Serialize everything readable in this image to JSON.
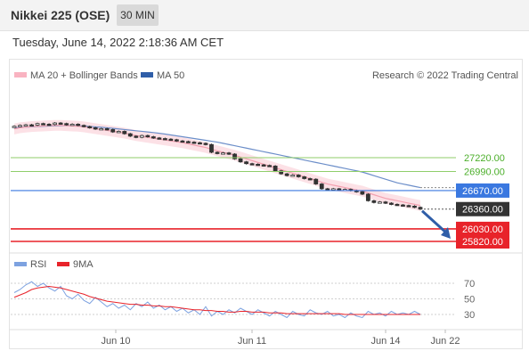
{
  "header": {
    "title": "Nikkei 225 (OSE)",
    "timeframe": "30 MIN"
  },
  "timestamp": "Tuesday, June 14, 2022 2:18:36 AM CET",
  "colors": {
    "candle_up": "#ffffff",
    "candle_down": "#333333",
    "band": "#f9c9d2",
    "ma20": "#f3a0b0",
    "ma50": "#6c8ec9",
    "resistance": "#8fce6a",
    "pivot": "#3a78e0",
    "support": "#e8232a",
    "rsi": "#7da2e0",
    "rsi_ma": "#e8232a"
  },
  "legend": {
    "ma20_label": "MA 20 + Bollinger Bands",
    "ma50_label": "MA 50",
    "credit": "Research © 2022 Trading Central"
  },
  "rsi_legend": {
    "rsi_label": "RSI",
    "ma_label": "9MA"
  },
  "levels": [
    {
      "value": "27220.00",
      "kind": "resistance"
    },
    {
      "value": "26990.00",
      "kind": "resistance"
    },
    {
      "value": "26670.00",
      "kind": "pivot"
    },
    {
      "value": "26360.00",
      "kind": "last"
    },
    {
      "value": "26030.00",
      "kind": "support"
    },
    {
      "value": "25820.00",
      "kind": "support"
    }
  ],
  "rsi_ticks": [
    "70",
    "50",
    "30"
  ],
  "x_ticks": [
    "Jun 10",
    "Jun 11",
    "Jun 14",
    "Jun 22"
  ],
  "chart_data": [
    {
      "type": "line",
      "title": "",
      "y_scale_ref": {
        "prices": [
          27220,
          25820
        ]
      },
      "close": [
        27745,
        27760,
        27770,
        27765,
        27790,
        27780,
        27775,
        27800,
        27790,
        27770,
        27780,
        27760,
        27740,
        27720,
        27700,
        27705,
        27690,
        27650,
        27660,
        27620,
        27580,
        27560,
        27590,
        27570,
        27550,
        27540,
        27530,
        27520,
        27500,
        27490,
        27480,
        27470,
        27460,
        27440,
        27310,
        27290,
        27300,
        27280,
        27200,
        27150,
        27120,
        27110,
        27100,
        27090,
        27080,
        27000,
        26950,
        26920,
        26930,
        26900,
        26870,
        26860,
        26780,
        26700,
        26690,
        26700,
        26680,
        26690,
        26670,
        26650,
        26610,
        26500,
        26470,
        26480,
        26460,
        26440,
        26430,
        26420,
        26410,
        26390,
        26360
      ],
      "ma20": [
        27700,
        27720,
        27730,
        27740,
        27745,
        27750,
        27755,
        27760,
        27760,
        27755,
        27750,
        27745,
        27735,
        27720,
        27705,
        27690,
        27675,
        27660,
        27645,
        27630,
        27610,
        27590,
        27575,
        27560,
        27545,
        27530,
        27515,
        27500,
        27485,
        27470,
        27450,
        27430,
        27410,
        27390,
        27360,
        27335,
        27310,
        27285,
        27260,
        27230,
        27200,
        27170,
        27140,
        27110,
        27080,
        27050,
        27020,
        26990,
        26960,
        26930,
        26900,
        26870,
        26840,
        26810,
        26780,
        26760,
        26740,
        26720,
        26700,
        26680,
        26660,
        26630,
        26600,
        26570,
        26540,
        26520,
        26500,
        26480,
        26460,
        26440,
        26420
      ],
      "ma50": [
        27720,
        27725,
        27730,
        27735,
        27740,
        27745,
        27750,
        27752,
        27754,
        27755,
        27754,
        27752,
        27748,
        27742,
        27735,
        27728,
        27720,
        27710,
        27700,
        27690,
        27680,
        27670,
        27660,
        27650,
        27640,
        27628,
        27615,
        27600,
        27585,
        27570,
        27555,
        27540,
        27525,
        27510,
        27495,
        27480,
        27460,
        27440,
        27420,
        27400,
        27380,
        27360,
        27340,
        27320,
        27300,
        27280,
        27260,
        27240,
        27220,
        27200,
        27180,
        27160,
        27140,
        27120,
        27100,
        27080,
        27060,
        27040,
        27020,
        27000,
        26980,
        26950,
        26920,
        26890,
        26860,
        26830,
        26800,
        26780,
        26760,
        26740,
        26720
      ],
      "forecast": {
        "from": 26360,
        "to": 25820
      }
    },
    {
      "type": "line",
      "title": "",
      "ylim": [
        0,
        100
      ],
      "series": [
        {
          "name": "RSI",
          "values": [
            58,
            62,
            68,
            72,
            66,
            70,
            64,
            60,
            66,
            54,
            50,
            56,
            48,
            44,
            52,
            46,
            40,
            44,
            38,
            42,
            36,
            44,
            40,
            46,
            38,
            42,
            36,
            40,
            34,
            38,
            32,
            36,
            30,
            40,
            28,
            34,
            30,
            36,
            32,
            38,
            34,
            30,
            36,
            32,
            28,
            34,
            30,
            26,
            34,
            30,
            28,
            36,
            32,
            30,
            34,
            28,
            30,
            26,
            32,
            28,
            26,
            34,
            30,
            32,
            28,
            34,
            30,
            32,
            30,
            34,
            30
          ]
        },
        {
          "name": "9MA",
          "values": [
            52,
            55,
            58,
            62,
            64,
            65,
            66,
            65,
            64,
            62,
            60,
            58,
            56,
            53,
            51,
            49,
            47,
            46,
            45,
            44,
            43,
            43,
            42,
            42,
            41,
            41,
            40,
            40,
            39,
            38,
            37,
            36,
            36,
            35,
            35,
            34,
            34,
            33,
            33,
            34,
            34,
            33,
            33,
            33,
            32,
            32,
            32,
            31,
            31,
            31,
            31,
            31,
            31,
            31,
            31,
            31,
            31,
            30,
            30,
            30,
            30,
            30,
            30,
            30,
            30,
            30,
            30,
            30,
            30,
            30,
            30
          ]
        }
      ]
    }
  ]
}
